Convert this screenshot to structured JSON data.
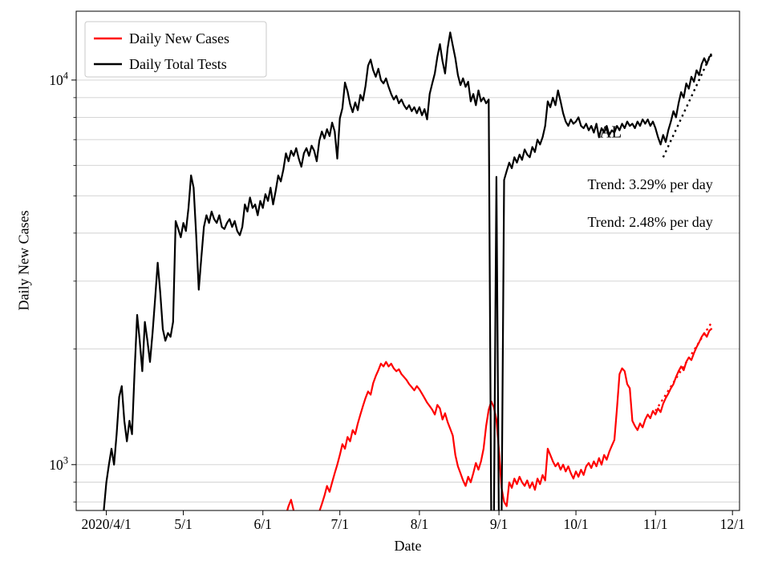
{
  "legend": {
    "items": [
      {
        "label": "Daily New Cases",
        "color": "#ff0000"
      },
      {
        "label": "Daily Total Tests",
        "color": "#000000"
      }
    ]
  },
  "annotations": [
    {
      "id": "state-label",
      "text": "AL",
      "day": 196.5,
      "value": 7100,
      "font_size": 21,
      "anchor": "middle",
      "color": "#000000"
    },
    {
      "id": "tests-trend-label",
      "text": "Trend: 3.29% per day",
      "day": 187.5,
      "value": 5200,
      "font_size": 18,
      "anchor": "start",
      "color": "#000000"
    },
    {
      "id": "cases-trend-label",
      "text": "Trend: 2.48% per day",
      "day": 187.5,
      "value": 4150,
      "font_size": 18,
      "anchor": "start",
      "color": "#000000"
    }
  ],
  "chart_data": {
    "type": "line",
    "title": "",
    "state": "AL",
    "grid": true,
    "legend_position": "upper left",
    "x_axis": {
      "label": "Date",
      "unit": "days since 2020-04-01",
      "range": [
        -11.75,
        246.75
      ],
      "ticks": [
        {
          "day": 0,
          "label": "2020/4/1"
        },
        {
          "day": 30,
          "label": "5/1"
        },
        {
          "day": 61,
          "label": "6/1"
        },
        {
          "day": 91,
          "label": "7/1"
        },
        {
          "day": 122,
          "label": "8/1"
        },
        {
          "day": 153,
          "label": "9/1"
        },
        {
          "day": 183,
          "label": "10/1"
        },
        {
          "day": 214,
          "label": "11/1"
        },
        {
          "day": 244,
          "label": "12/1"
        }
      ]
    },
    "y_axis": {
      "label": "Daily New Cases",
      "scale": "log",
      "range": [
        760,
        15100
      ],
      "major_ticks": [
        {
          "value": 1000,
          "base": "10",
          "exponent": "3"
        },
        {
          "value": 10000,
          "base": "10",
          "exponent": "4"
        }
      ],
      "minor_ticks": [
        800,
        900,
        2000,
        3000,
        4000,
        5000,
        6000,
        7000,
        8000,
        9000
      ],
      "gridlines": [
        800,
        900,
        1000,
        2000,
        3000,
        4000,
        5000,
        6000,
        7000,
        8000,
        9000,
        10000
      ]
    },
    "series": [
      {
        "name": "Daily New Cases",
        "color": "#ff0000",
        "style": "solid",
        "width": 2.2,
        "start_day": 70,
        "values": [
          740,
          780,
          810,
          760,
          700,
          710,
          720,
          715,
          710,
          720,
          730,
          738,
          745,
          755,
          790,
          830,
          880,
          850,
          900,
          950,
          1000,
          1060,
          1130,
          1100,
          1180,
          1150,
          1230,
          1200,
          1280,
          1350,
          1420,
          1490,
          1550,
          1520,
          1630,
          1700,
          1760,
          1830,
          1800,
          1850,
          1800,
          1830,
          1780,
          1750,
          1770,
          1720,
          1690,
          1660,
          1620,
          1590,
          1560,
          1600,
          1570,
          1530,
          1490,
          1450,
          1420,
          1390,
          1350,
          1430,
          1400,
          1310,
          1360,
          1290,
          1240,
          1190,
          1060,
          990,
          950,
          910,
          880,
          930,
          900,
          950,
          1010,
          970,
          1020,
          1100,
          1260,
          1390,
          1460,
          1410,
          1310,
          1090,
          870,
          800,
          780,
          900,
          870,
          920,
          890,
          930,
          900,
          880,
          910,
          870,
          900,
          860,
          920,
          890,
          940,
          910,
          1100,
          1060,
          1020,
          990,
          1010,
          970,
          1000,
          960,
          990,
          950,
          920,
          960,
          930,
          970,
          940,
          990,
          1010,
          980,
          1020,
          990,
          1040,
          1000,
          1060,
          1030,
          1080,
          1120,
          1160,
          1400,
          1720,
          1780,
          1750,
          1620,
          1580,
          1300,
          1260,
          1230,
          1280,
          1250,
          1310,
          1350,
          1320,
          1380,
          1350,
          1400,
          1370,
          1440,
          1490,
          1530,
          1580,
          1620,
          1690,
          1750,
          1800,
          1760,
          1850,
          1900,
          1870,
          1950,
          2020,
          2080,
          2150,
          2200,
          2150,
          2230,
          2260
        ]
      },
      {
        "name": "Daily Total Tests",
        "color": "#000000",
        "style": "solid",
        "width": 2.2,
        "start_day": -1,
        "values": [
          760,
          900,
          1000,
          1100,
          1000,
          1200,
          1500,
          1600,
          1300,
          1150,
          1300,
          1200,
          1750,
          2450,
          2100,
          1750,
          2350,
          2100,
          1850,
          2200,
          2700,
          3350,
          2800,
          2250,
          2100,
          2200,
          2150,
          2350,
          4300,
          4100,
          3900,
          4250,
          4050,
          4650,
          5650,
          5250,
          3950,
          2850,
          3450,
          4150,
          4450,
          4250,
          4550,
          4350,
          4250,
          4450,
          4150,
          4100,
          4250,
          4350,
          4150,
          4300,
          4050,
          3950,
          4150,
          4750,
          4550,
          4950,
          4650,
          4750,
          4450,
          4850,
          4650,
          5050,
          4850,
          5250,
          4750,
          5150,
          5650,
          5450,
          5850,
          6450,
          6150,
          6550,
          6350,
          6650,
          6250,
          5950,
          6450,
          6650,
          6350,
          6750,
          6550,
          6150,
          6950,
          7350,
          7050,
          7450,
          7150,
          7750,
          7350,
          6250,
          7950,
          8450,
          9850,
          9350,
          8650,
          8250,
          8750,
          8350,
          9150,
          8850,
          9650,
          10900,
          11300,
          10600,
          10200,
          10700,
          10000,
          9800,
          10100,
          9600,
          9200,
          8900,
          9100,
          8700,
          8900,
          8600,
          8400,
          8600,
          8300,
          8500,
          8200,
          8500,
          8100,
          8400,
          7900,
          9200,
          9800,
          10400,
          11500,
          12400,
          11200,
          10400,
          12100,
          13300,
          12300,
          11400,
          10300,
          9700,
          10100,
          9600,
          9900,
          8800,
          9200,
          8600,
          9400,
          8800,
          9000,
          8700,
          8900,
          700,
          680,
          5600,
          660,
          700,
          5500,
          5800,
          6100,
          5900,
          6300,
          6100,
          6400,
          6200,
          6600,
          6400,
          6300,
          6700,
          6500,
          7000,
          6800,
          7100,
          7600,
          8800,
          8500,
          9000,
          8600,
          9400,
          8800,
          8200,
          7800,
          7600,
          7900,
          7700,
          7800,
          8000,
          7600,
          7500,
          7700,
          7400,
          7600,
          7300,
          7700,
          7100,
          7500,
          7300,
          7600,
          7200,
          7400,
          7300,
          7600,
          7400,
          7700,
          7500,
          7800,
          7600,
          7700,
          7500,
          7800,
          7600,
          7900,
          7700,
          7900,
          7600,
          7800,
          7500,
          7100,
          6800,
          7200,
          6900,
          7400,
          7800,
          8300,
          8000,
          8700,
          9300,
          9000,
          9800,
          9500,
          10200,
          9900,
          10600,
          10300,
          11000,
          11400,
          11000,
          11500,
          11600
        ]
      },
      {
        "name": "Daily New Cases trend (2.48% per day)",
        "color": "#ff0000",
        "style": "dotted",
        "width": 2.4,
        "points": [
          [
            214,
            1380
          ],
          [
            236,
            2350
          ]
        ]
      },
      {
        "name": "Daily Total Tests trend (3.29% per day)",
        "color": "#000000",
        "style": "dotted",
        "width": 2.4,
        "points": [
          [
            217,
            6300
          ],
          [
            236,
            11800
          ]
        ]
      }
    ]
  }
}
